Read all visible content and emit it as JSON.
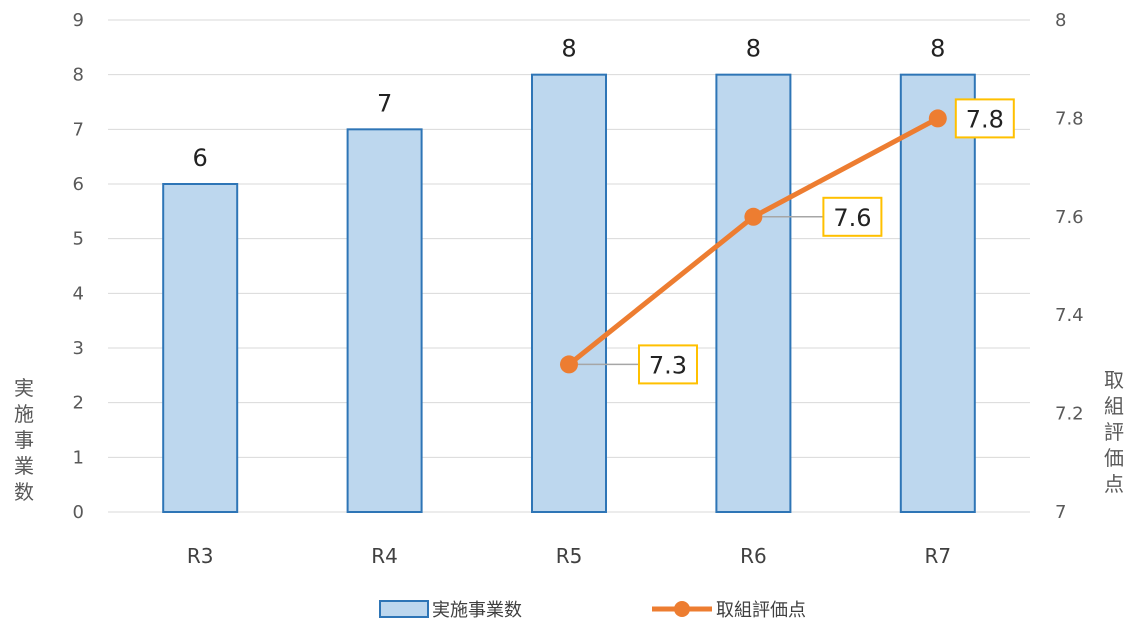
{
  "chart_data": {
    "type": "bar",
    "categories": [
      "R3",
      "R4",
      "R5",
      "R6",
      "R7"
    ],
    "y_left": {
      "label": "実施事業数",
      "min": 0,
      "max": 9,
      "ticks": [
        0,
        1,
        2,
        3,
        4,
        5,
        6,
        7,
        8,
        9
      ]
    },
    "y_right": {
      "label": "取組評価点",
      "min": 7,
      "max": 8,
      "ticks": [
        "7",
        "7.2",
        "7.4",
        "7.6",
        "7.8",
        "8"
      ]
    },
    "series": [
      {
        "name": "実施事業数",
        "type": "bar",
        "axis": "left",
        "values": [
          6,
          7,
          8,
          8,
          8
        ],
        "labels": [
          "6",
          "7",
          "8",
          "8",
          "8"
        ],
        "color": "#BDD7EE",
        "border": "#2E75B6"
      },
      {
        "name": "取組評価点",
        "type": "line",
        "axis": "right",
        "values": [
          null,
          null,
          7.3,
          7.6,
          7.8
        ],
        "labels": [
          "",
          "",
          "7.3",
          "7.6",
          "7.8"
        ],
        "color": "#ED7D31",
        "label_border": "#FFC000"
      }
    ],
    "legend_position": "bottom",
    "grid": true
  }
}
